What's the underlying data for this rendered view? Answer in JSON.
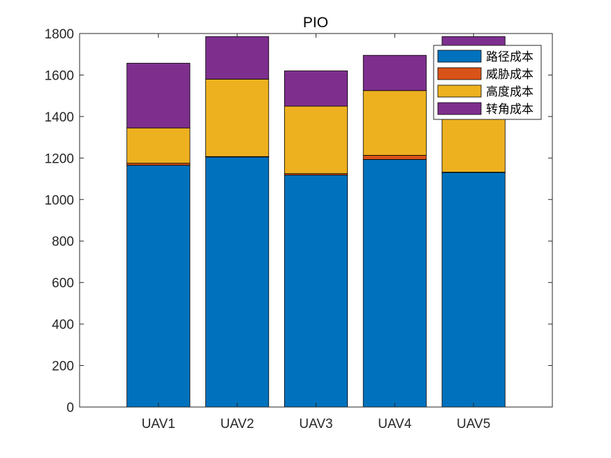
{
  "chart_data": {
    "type": "bar",
    "stacked": true,
    "title": "PIO",
    "xlabel": "",
    "ylabel": "",
    "categories": [
      "UAV1",
      "UAV2",
      "UAV3",
      "UAV4",
      "UAV5"
    ],
    "ylim": [
      0,
      1800
    ],
    "yticks": [
      0,
      200,
      400,
      600,
      800,
      1000,
      1200,
      1400,
      1600,
      1800
    ],
    "grid": false,
    "legend_position": "top-right",
    "series": [
      {
        "name": "路径成本",
        "color": "#0072BD",
        "values": [
          1165,
          1205,
          1118,
          1193,
          1130
        ]
      },
      {
        "name": "威胁成本",
        "color": "#D95319",
        "values": [
          10,
          2,
          7,
          20,
          2
        ]
      },
      {
        "name": "高度成本",
        "color": "#EDB120",
        "values": [
          170,
          373,
          325,
          312,
          483
        ]
      },
      {
        "name": "转角成本",
        "color": "#7E2F8E",
        "values": [
          312,
          205,
          170,
          170,
          170
        ]
      }
    ]
  }
}
